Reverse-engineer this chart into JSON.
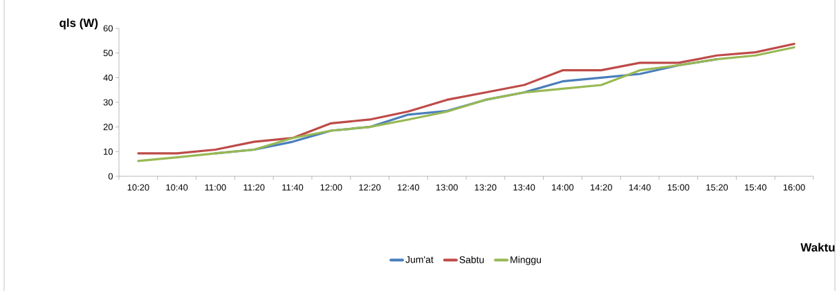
{
  "chart_data": {
    "type": "line",
    "xlabel": "Waktu",
    "ylabel": "qls (W)",
    "categories": [
      "10:20",
      "10:40",
      "11:00",
      "11:20",
      "11:40",
      "12:00",
      "12:20",
      "12:40",
      "13:00",
      "13:20",
      "13:40",
      "14:00",
      "14:20",
      "14:40",
      "15:00",
      "15:20",
      "15:40",
      "16:00"
    ],
    "series": [
      {
        "name": "Jum'at",
        "color": "#4a7ebb",
        "values": [
          null,
          null,
          9.3,
          10.8,
          14,
          18.5,
          20,
          25,
          26.5,
          31,
          34,
          38.5,
          40,
          41.5,
          45,
          47.5,
          null,
          null
        ]
      },
      {
        "name": "Sabtu",
        "color": "#be4b48",
        "values": [
          9.3,
          9.3,
          10.8,
          14,
          15.5,
          21.5,
          23,
          26.3,
          31,
          34,
          37,
          43,
          43,
          46,
          46,
          49,
          50.3,
          53.7
        ]
      },
      {
        "name": "Minggu",
        "color": "#98b954",
        "values": [
          6.2,
          7.7,
          9.3,
          10.8,
          15.5,
          18.5,
          20,
          23,
          26.2,
          31,
          34,
          35.5,
          37,
          43,
          45,
          47.5,
          49,
          52.3
        ]
      }
    ],
    "ylim": [
      0,
      60
    ],
    "yticks": [
      0,
      10,
      20,
      30,
      40,
      50,
      60
    ],
    "grid": false,
    "legend": "bottom",
    "marker": "none",
    "line_style": "solid"
  }
}
